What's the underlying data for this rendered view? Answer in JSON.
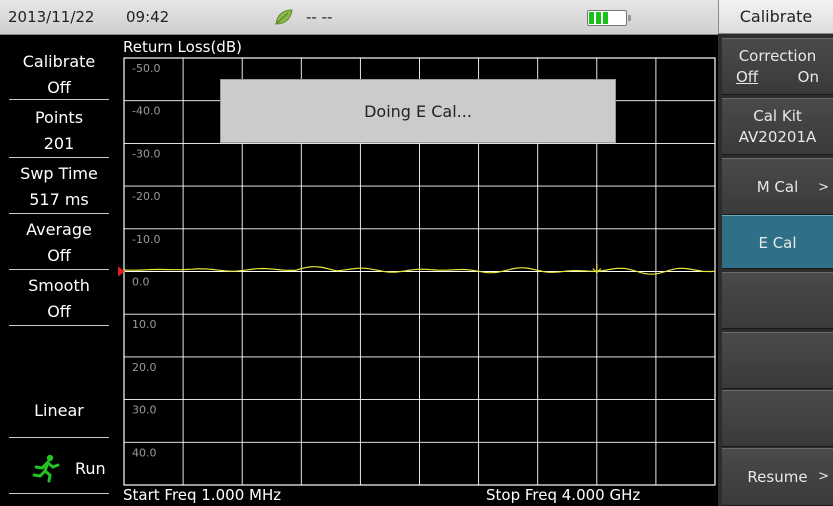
{
  "status_bar": {
    "date": "2013/11/22",
    "time": "09:42",
    "status": "-- --",
    "battery_level": 0.75
  },
  "left_panel": {
    "calibrate": {
      "label": "Calibrate",
      "value": "Off"
    },
    "points": {
      "label": "Points",
      "value": "201"
    },
    "sweep_time": {
      "label": "Swp Time",
      "value": "517 ms"
    },
    "average": {
      "label": "Average",
      "value": "Off"
    },
    "smooth": {
      "label": "Smooth",
      "value": "Off"
    },
    "scale": "Linear",
    "run": "Run"
  },
  "plot": {
    "title": "Return Loss(dB)",
    "y_tick_labels": [
      "-50.0",
      "-40.0",
      "-30.0",
      "-20.0",
      "-10.0",
      "0.0",
      "10.0",
      "20.0",
      "30.0",
      "40.0"
    ],
    "start_freq": "Start Freq 1.000 MHz",
    "stop_freq": "Stop Freq 4.000 GHz",
    "grid_color": "#ffffff",
    "trace_color": "#e6e635",
    "reference_marker_color": "#e02020"
  },
  "dialog": {
    "message": "Doing E Cal..."
  },
  "softkeys": {
    "menu_title": "Calibrate",
    "correction": {
      "label": "Correction",
      "off": "Off",
      "on": "On",
      "selected": "Off"
    },
    "cal_kit": {
      "label": "Cal Kit",
      "value": "AV20201A"
    },
    "m_cal": "M Cal",
    "e_cal": "E Cal",
    "resume": "Resume",
    "submenu_arrow": ">",
    "active_color": "#2f6f87"
  }
}
